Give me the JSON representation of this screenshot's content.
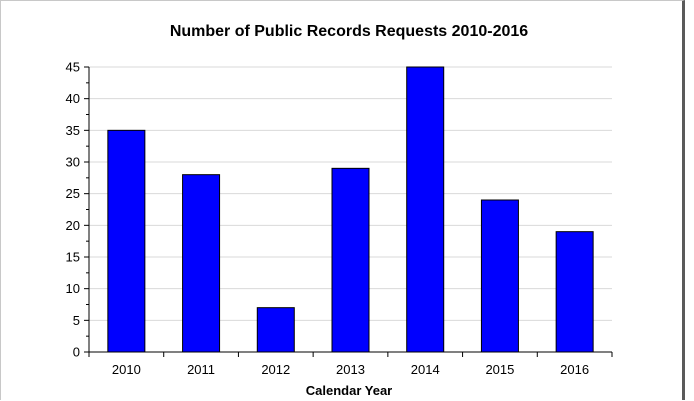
{
  "chart_data": {
    "type": "bar",
    "title": "Number of Public Records Requests 2010-2016",
    "xlabel": "Calendar Year",
    "ylabel": "",
    "categories": [
      "2010",
      "2011",
      "2012",
      "2013",
      "2014",
      "2015",
      "2016"
    ],
    "values": [
      35,
      28,
      7,
      29,
      45,
      24,
      19
    ],
    "ylim": [
      0,
      45
    ],
    "yticks": [
      "0",
      "5",
      "10",
      "15",
      "20",
      "25",
      "30",
      "35",
      "40",
      "45"
    ],
    "grid": true,
    "legend": "none",
    "colors": {
      "bar": "#0000ff",
      "bar_edge": "#000000",
      "grid": "#d9d9d9"
    }
  }
}
